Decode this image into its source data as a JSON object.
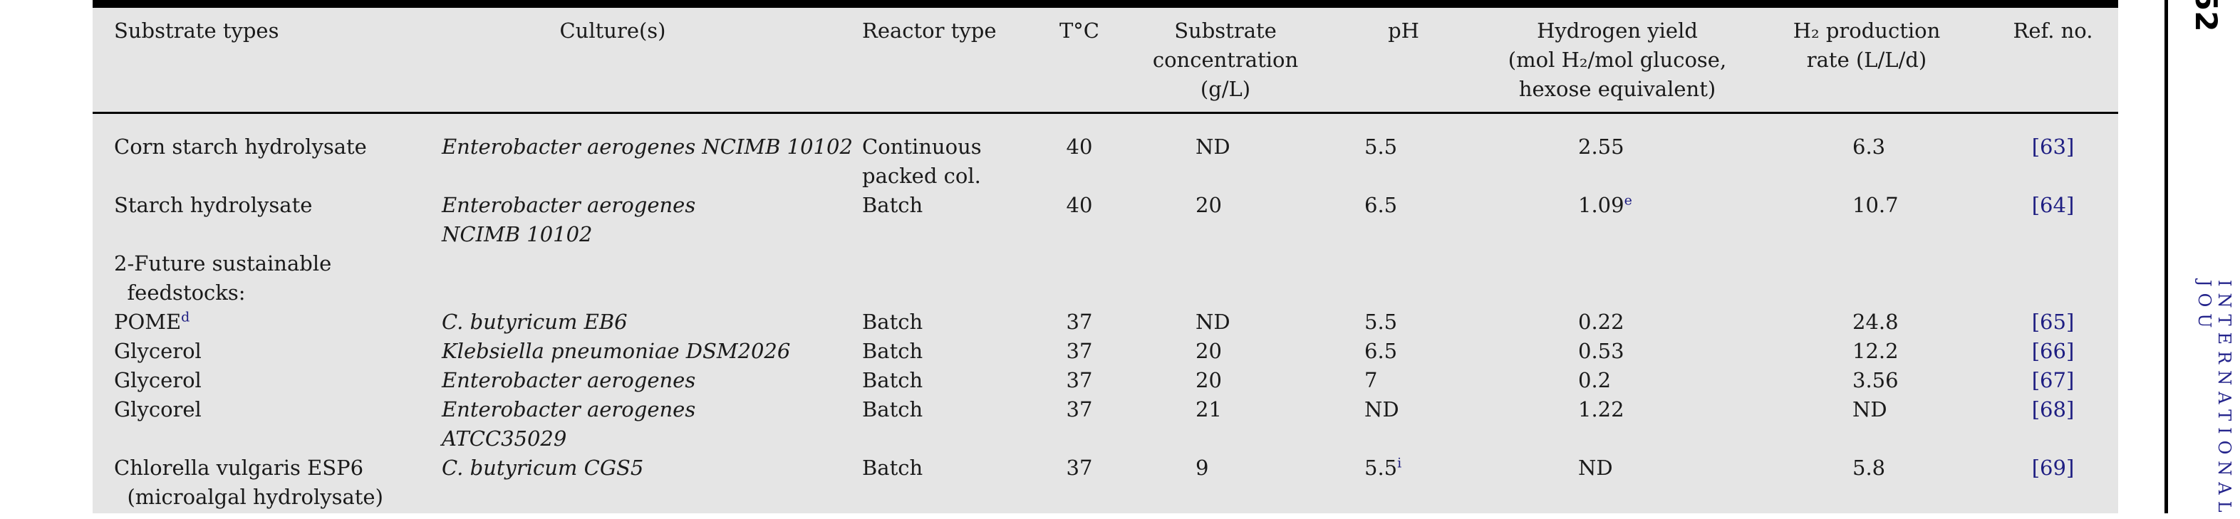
{
  "colors": {
    "table_background": "#e5e5e5",
    "rule_black": "#000000",
    "link_navy": "#1e1e82",
    "text": "#1a1a1a"
  },
  "page": {
    "page_number": "52",
    "journal_sidebar_text": "INTERNATIONAL JOU"
  },
  "table": {
    "columns": [
      {
        "label": "Substrate types"
      },
      {
        "label": "Culture(s)"
      },
      {
        "label": "Reactor type"
      },
      {
        "label": "T°C"
      },
      {
        "label": "Substrate\nconcentration\n(g/L)"
      },
      {
        "label": "pH"
      },
      {
        "label": "Hydrogen yield\n(mol H₂/mol glucose,\nhexose equivalent)"
      },
      {
        "label": "H₂ production\nrate (L/L/d)"
      },
      {
        "label": "Ref. no."
      }
    ],
    "rows": [
      {
        "substrate": "Corn starch hydrolysate",
        "substrate_note": "",
        "culture": "Enterobacter aerogenes NCIMB 10102",
        "reactor": "Continuous\npacked col.",
        "temp": "40",
        "conc": "ND",
        "ph": "5.5",
        "ph_note": "",
        "yield": "2.55",
        "yield_note": "",
        "rate": "6.3",
        "ref": "[63]"
      },
      {
        "substrate": "Starch hydrolysate",
        "substrate_note": "",
        "culture": "Enterobacter aerogenes\nNCIMB 10102",
        "reactor": "Batch",
        "temp": "40",
        "conc": "20",
        "ph": "6.5",
        "ph_note": "",
        "yield": "1.09",
        "yield_note": "e",
        "rate": "10.7",
        "ref": "[64]"
      },
      {
        "substrate": "2-Future sustainable\n  feedstocks:",
        "substrate_note": "",
        "culture": "",
        "reactor": "",
        "temp": "",
        "conc": "",
        "ph": "",
        "ph_note": "",
        "yield": "",
        "yield_note": "",
        "rate": "",
        "ref": ""
      },
      {
        "substrate": "POME",
        "substrate_note": "d",
        "culture": "C. butyricum EB6",
        "reactor": "Batch",
        "temp": "37",
        "conc": "ND",
        "ph": "5.5",
        "ph_note": "",
        "yield": "0.22",
        "yield_note": "",
        "rate": "24.8",
        "ref": "[65]"
      },
      {
        "substrate": "Glycerol",
        "substrate_note": "",
        "culture": "Klebsiella pneumoniae DSM2026",
        "reactor": "Batch",
        "temp": "37",
        "conc": "20",
        "ph": "6.5",
        "ph_note": "",
        "yield": "0.53",
        "yield_note": "",
        "rate": "12.2",
        "ref": "[66]"
      },
      {
        "substrate": "Glycerol",
        "substrate_note": "",
        "culture": "Enterobacter aerogenes",
        "reactor": "Batch",
        "temp": "37",
        "conc": "20",
        "ph": "7",
        "ph_note": "",
        "yield": "0.2",
        "yield_note": "",
        "rate": "3.56",
        "ref": "[67]"
      },
      {
        "substrate": "Glycorel",
        "substrate_note": "",
        "culture": "Enterobacter aerogenes\nATCC35029",
        "reactor": "Batch",
        "temp": "37",
        "conc": "21",
        "ph": "ND",
        "ph_note": "",
        "yield": "1.22",
        "yield_note": "",
        "rate": "ND",
        "ref": "[68]"
      },
      {
        "substrate": "Chlorella vulgaris ESP6\n  (microalgal hydrolysate)",
        "substrate_note": "",
        "culture": "C. butyricum CGS5",
        "reactor": "Batch",
        "temp": "37",
        "conc": "9",
        "ph": "5.5",
        "ph_note": "i",
        "yield": "ND",
        "yield_note": "",
        "rate": "5.8",
        "ref": "[69]"
      }
    ]
  }
}
